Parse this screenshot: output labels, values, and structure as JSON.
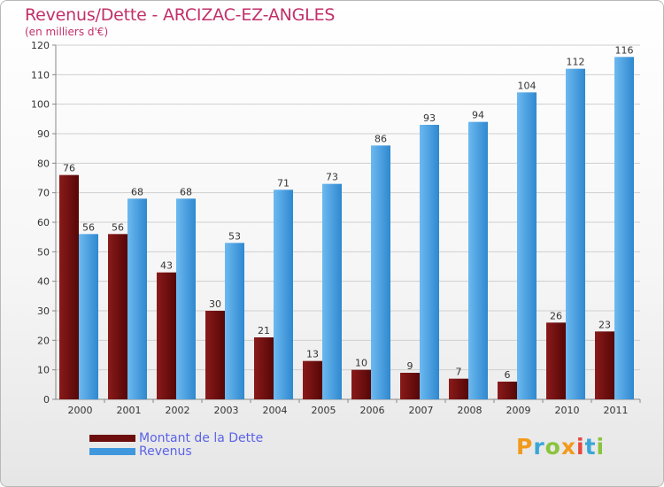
{
  "header": {
    "title": "Revenus/Dette - ARCIZAC-EZ-ANGLES",
    "subtitle": "(en milliers d'€)"
  },
  "legend": {
    "items": [
      {
        "label": "Montant de la Dette",
        "color": "#6e0d0d"
      },
      {
        "label": "Revenus",
        "color": "#3f98de"
      }
    ]
  },
  "logo": {
    "letters": [
      "P",
      "r",
      "o",
      "x",
      "i",
      "t",
      "i"
    ],
    "colors": [
      "#f29a1c",
      "#3aa6d8",
      "#8ac33c",
      "#f29a1c",
      "#e6473c",
      "#3aa6d8",
      "#8ac33c"
    ]
  },
  "chart_data": {
    "type": "bar",
    "title": "Revenus/Dette - ARCIZAC-EZ-ANGLES",
    "ylabel": "(en milliers d'€)",
    "xlabel": "",
    "categories": [
      "2000",
      "2001",
      "2002",
      "2003",
      "2004",
      "2005",
      "2006",
      "2007",
      "2008",
      "2009",
      "2010",
      "2011"
    ],
    "series": [
      {
        "name": "Montant de la Dette",
        "values": [
          76,
          56,
          43,
          30,
          21,
          13,
          10,
          9,
          7,
          6,
          26,
          23
        ]
      },
      {
        "name": "Revenus",
        "values": [
          56,
          68,
          68,
          53,
          71,
          73,
          86,
          93,
          94,
          104,
          112,
          116
        ]
      }
    ],
    "ylim": [
      0,
      120
    ],
    "yticks": [
      0,
      10,
      20,
      30,
      40,
      50,
      60,
      70,
      80,
      90,
      100,
      110,
      120
    ],
    "grid": true,
    "legend_position": "bottom-left"
  }
}
